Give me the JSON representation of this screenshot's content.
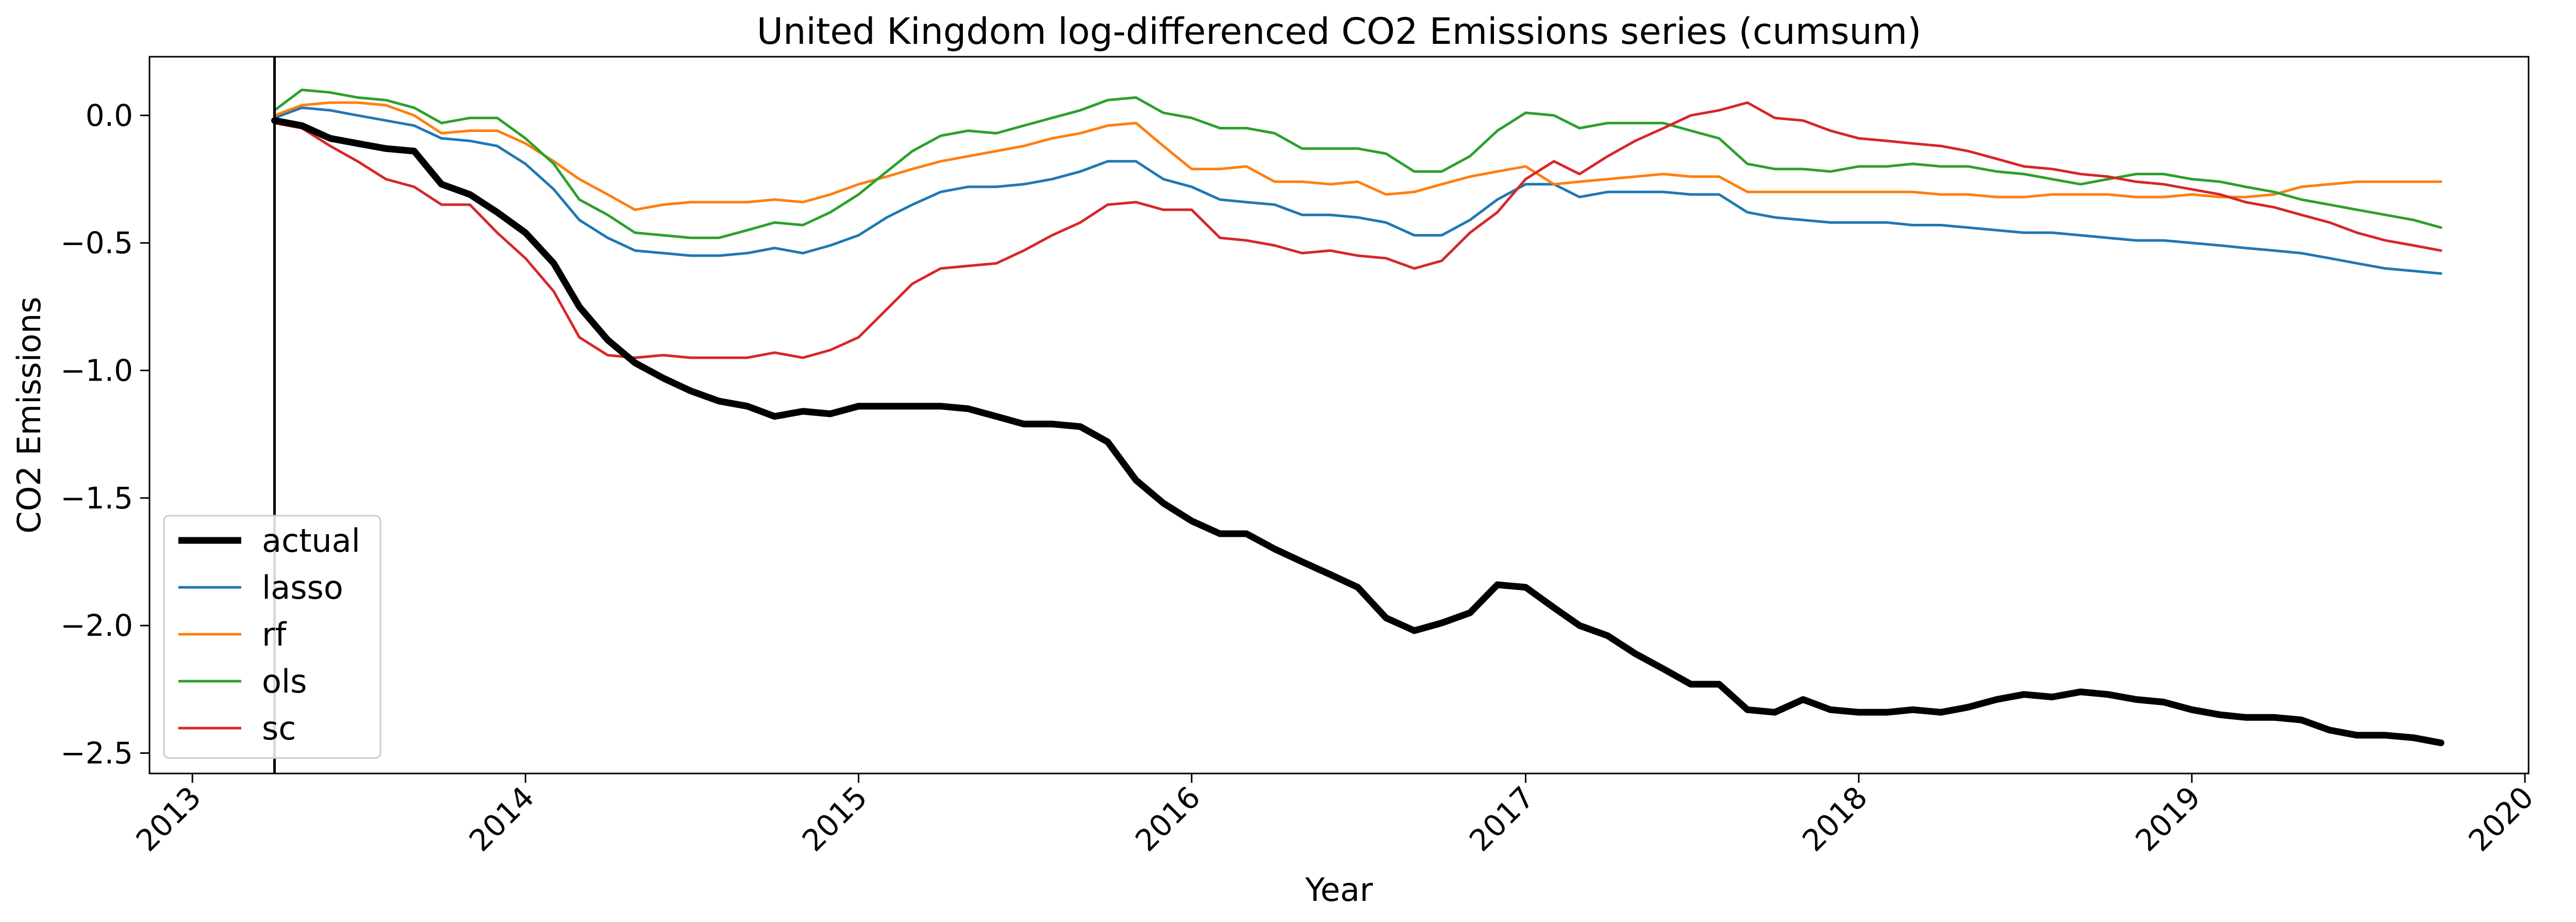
{
  "chart_data": {
    "type": "line",
    "title": "United Kingdom log-differenced CO2 Emissions series (cumsum)",
    "xlabel": "Year",
    "ylabel": "CO2 Emissions",
    "xlim": [
      "2012-11-15",
      "2020-01-05"
    ],
    "ylim": [
      -2.58,
      0.23
    ],
    "x_ticks": [
      "2013",
      "2014",
      "2015",
      "2016",
      "2017",
      "2018",
      "2019",
      "2020"
    ],
    "x_tick_dates": [
      "2013-01-01",
      "2014-01-01",
      "2015-01-01",
      "2016-01-01",
      "2017-01-01",
      "2018-01-01",
      "2019-01-01",
      "2020-01-01"
    ],
    "y_ticks": [
      0.0,
      -0.5,
      -1.0,
      -1.5,
      -2.0,
      -2.5
    ],
    "y_tick_labels": [
      "0.0",
      "−0.5",
      "−1.0",
      "−1.5",
      "−2.0",
      "−2.5"
    ],
    "grid": false,
    "legend_position": "lower-left",
    "intervention_date": "2013-04-01",
    "x": [
      "2013-04-01",
      "2013-05-01",
      "2013-06-01",
      "2013-07-01",
      "2013-08-01",
      "2013-09-01",
      "2013-10-01",
      "2013-11-01",
      "2013-12-01",
      "2014-01-01",
      "2014-02-01",
      "2014-03-01",
      "2014-04-01",
      "2014-05-01",
      "2014-06-01",
      "2014-07-01",
      "2014-08-01",
      "2014-09-01",
      "2014-10-01",
      "2014-11-01",
      "2014-12-01",
      "2015-01-01",
      "2015-02-01",
      "2015-03-01",
      "2015-04-01",
      "2015-05-01",
      "2015-06-01",
      "2015-07-01",
      "2015-08-01",
      "2015-09-01",
      "2015-10-01",
      "2015-11-01",
      "2015-12-01",
      "2016-01-01",
      "2016-02-01",
      "2016-03-01",
      "2016-04-01",
      "2016-05-01",
      "2016-06-01",
      "2016-07-01",
      "2016-08-01",
      "2016-09-01",
      "2016-10-01",
      "2016-11-01",
      "2016-12-01",
      "2017-01-01",
      "2017-02-01",
      "2017-03-01",
      "2017-04-01",
      "2017-05-01",
      "2017-06-01",
      "2017-07-01",
      "2017-08-01",
      "2017-09-01",
      "2017-10-01",
      "2017-11-01",
      "2017-12-01",
      "2018-01-01",
      "2018-02-01",
      "2018-03-01",
      "2018-04-01",
      "2018-05-01",
      "2018-06-01",
      "2018-07-01",
      "2018-08-01",
      "2018-09-01",
      "2018-10-01",
      "2018-11-01",
      "2018-12-01",
      "2019-01-01",
      "2019-02-01",
      "2019-03-01",
      "2019-04-01",
      "2019-05-01",
      "2019-06-01",
      "2019-07-01",
      "2019-08-01",
      "2019-09-01",
      "2019-10-01"
    ],
    "series": [
      {
        "name": "actual",
        "color": "#000000",
        "width": 5,
        "values": [
          -0.02,
          -0.04,
          -0.09,
          -0.11,
          -0.13,
          -0.14,
          -0.27,
          -0.31,
          -0.38,
          -0.46,
          -0.58,
          -0.75,
          -0.88,
          -0.97,
          -1.03,
          -1.08,
          -1.12,
          -1.14,
          -1.18,
          -1.16,
          -1.17,
          -1.14,
          -1.14,
          -1.14,
          -1.14,
          -1.15,
          -1.18,
          -1.21,
          -1.21,
          -1.22,
          -1.28,
          -1.43,
          -1.52,
          -1.59,
          -1.64,
          -1.64,
          -1.7,
          -1.75,
          -1.8,
          -1.85,
          -1.97,
          -2.02,
          -1.99,
          -1.95,
          -1.84,
          -1.85,
          -1.93,
          -2.0,
          -2.04,
          -2.11,
          -2.17,
          -2.23,
          -2.23,
          -2.33,
          -2.34,
          -2.29,
          -2.33,
          -2.34,
          -2.34,
          -2.33,
          -2.34,
          -2.32,
          -2.29,
          -2.27,
          -2.28,
          -2.26,
          -2.27,
          -2.29,
          -2.3,
          -2.33,
          -2.35,
          -2.36,
          -2.36,
          -2.37,
          -2.41,
          -2.43,
          -2.43,
          -2.44,
          -2.46
        ]
      },
      {
        "name": "lasso",
        "color": "#1f77b4",
        "width": 3,
        "values": [
          -0.01,
          0.03,
          0.02,
          0.0,
          -0.02,
          -0.04,
          -0.09,
          -0.1,
          -0.12,
          -0.19,
          -0.29,
          -0.41,
          -0.48,
          -0.53,
          -0.54,
          -0.55,
          -0.55,
          -0.54,
          -0.52,
          -0.54,
          -0.51,
          -0.47,
          -0.4,
          -0.35,
          -0.3,
          -0.28,
          -0.28,
          -0.27,
          -0.25,
          -0.22,
          -0.18,
          -0.18,
          -0.25,
          -0.28,
          -0.33,
          -0.34,
          -0.35,
          -0.39,
          -0.39,
          -0.4,
          -0.42,
          -0.47,
          -0.47,
          -0.41,
          -0.33,
          -0.27,
          -0.27,
          -0.32,
          -0.3,
          -0.3,
          -0.3,
          -0.31,
          -0.31,
          -0.38,
          -0.4,
          -0.41,
          -0.42,
          -0.42,
          -0.42,
          -0.43,
          -0.43,
          -0.44,
          -0.45,
          -0.46,
          -0.46,
          -0.47,
          -0.48,
          -0.49,
          -0.49,
          -0.5,
          -0.51,
          -0.52,
          -0.53,
          -0.54,
          -0.56,
          -0.58,
          -0.6,
          -0.61,
          -0.62
        ]
      },
      {
        "name": "rf",
        "color": "#ff7f0e",
        "width": 3,
        "values": [
          0.0,
          0.04,
          0.05,
          0.05,
          0.04,
          0.0,
          -0.07,
          -0.06,
          -0.06,
          -0.11,
          -0.18,
          -0.25,
          -0.31,
          -0.37,
          -0.35,
          -0.34,
          -0.34,
          -0.34,
          -0.33,
          -0.34,
          -0.31,
          -0.27,
          -0.24,
          -0.21,
          -0.18,
          -0.16,
          -0.14,
          -0.12,
          -0.09,
          -0.07,
          -0.04,
          -0.03,
          -0.12,
          -0.21,
          -0.21,
          -0.2,
          -0.26,
          -0.26,
          -0.27,
          -0.26,
          -0.31,
          -0.3,
          -0.27,
          -0.24,
          -0.22,
          -0.2,
          -0.27,
          -0.26,
          -0.25,
          -0.24,
          -0.23,
          -0.24,
          -0.24,
          -0.3,
          -0.3,
          -0.3,
          -0.3,
          -0.3,
          -0.3,
          -0.3,
          -0.31,
          -0.31,
          -0.32,
          -0.32,
          -0.31,
          -0.31,
          -0.31,
          -0.32,
          -0.32,
          -0.31,
          -0.32,
          -0.32,
          -0.31,
          -0.28,
          -0.27,
          -0.26,
          -0.26,
          -0.26,
          -0.26
        ]
      },
      {
        "name": "ols",
        "color": "#2ca02c",
        "width": 3,
        "values": [
          0.02,
          0.1,
          0.09,
          0.07,
          0.06,
          0.03,
          -0.03,
          -0.01,
          -0.01,
          -0.09,
          -0.19,
          -0.33,
          -0.39,
          -0.46,
          -0.47,
          -0.48,
          -0.48,
          -0.45,
          -0.42,
          -0.43,
          -0.38,
          -0.31,
          -0.22,
          -0.14,
          -0.08,
          -0.06,
          -0.07,
          -0.04,
          -0.01,
          0.02,
          0.06,
          0.07,
          0.01,
          -0.01,
          -0.05,
          -0.05,
          -0.07,
          -0.13,
          -0.13,
          -0.13,
          -0.15,
          -0.22,
          -0.22,
          -0.16,
          -0.06,
          0.01,
          0.0,
          -0.05,
          -0.03,
          -0.03,
          -0.03,
          -0.06,
          -0.09,
          -0.19,
          -0.21,
          -0.21,
          -0.22,
          -0.2,
          -0.2,
          -0.19,
          -0.2,
          -0.2,
          -0.22,
          -0.23,
          -0.25,
          -0.27,
          -0.25,
          -0.23,
          -0.23,
          -0.25,
          -0.26,
          -0.28,
          -0.3,
          -0.33,
          -0.35,
          -0.37,
          -0.39,
          -0.41,
          -0.44
        ]
      },
      {
        "name": "sc",
        "color": "#d62728",
        "width": 3,
        "values": [
          -0.03,
          -0.05,
          -0.12,
          -0.18,
          -0.25,
          -0.28,
          -0.35,
          -0.35,
          -0.46,
          -0.56,
          -0.69,
          -0.87,
          -0.94,
          -0.95,
          -0.94,
          -0.95,
          -0.95,
          -0.95,
          -0.93,
          -0.95,
          -0.92,
          -0.87,
          -0.76,
          -0.66,
          -0.6,
          -0.59,
          -0.58,
          -0.53,
          -0.47,
          -0.42,
          -0.35,
          -0.34,
          -0.37,
          -0.37,
          -0.48,
          -0.49,
          -0.51,
          -0.54,
          -0.53,
          -0.55,
          -0.56,
          -0.6,
          -0.57,
          -0.46,
          -0.38,
          -0.25,
          -0.18,
          -0.23,
          -0.16,
          -0.1,
          -0.05,
          0.0,
          0.02,
          0.05,
          -0.01,
          -0.02,
          -0.06,
          -0.09,
          -0.1,
          -0.11,
          -0.12,
          -0.14,
          -0.17,
          -0.2,
          -0.21,
          -0.23,
          -0.24,
          -0.26,
          -0.27,
          -0.29,
          -0.31,
          -0.34,
          -0.36,
          -0.39,
          -0.42,
          -0.46,
          -0.49,
          -0.51,
          -0.53
        ]
      }
    ]
  }
}
